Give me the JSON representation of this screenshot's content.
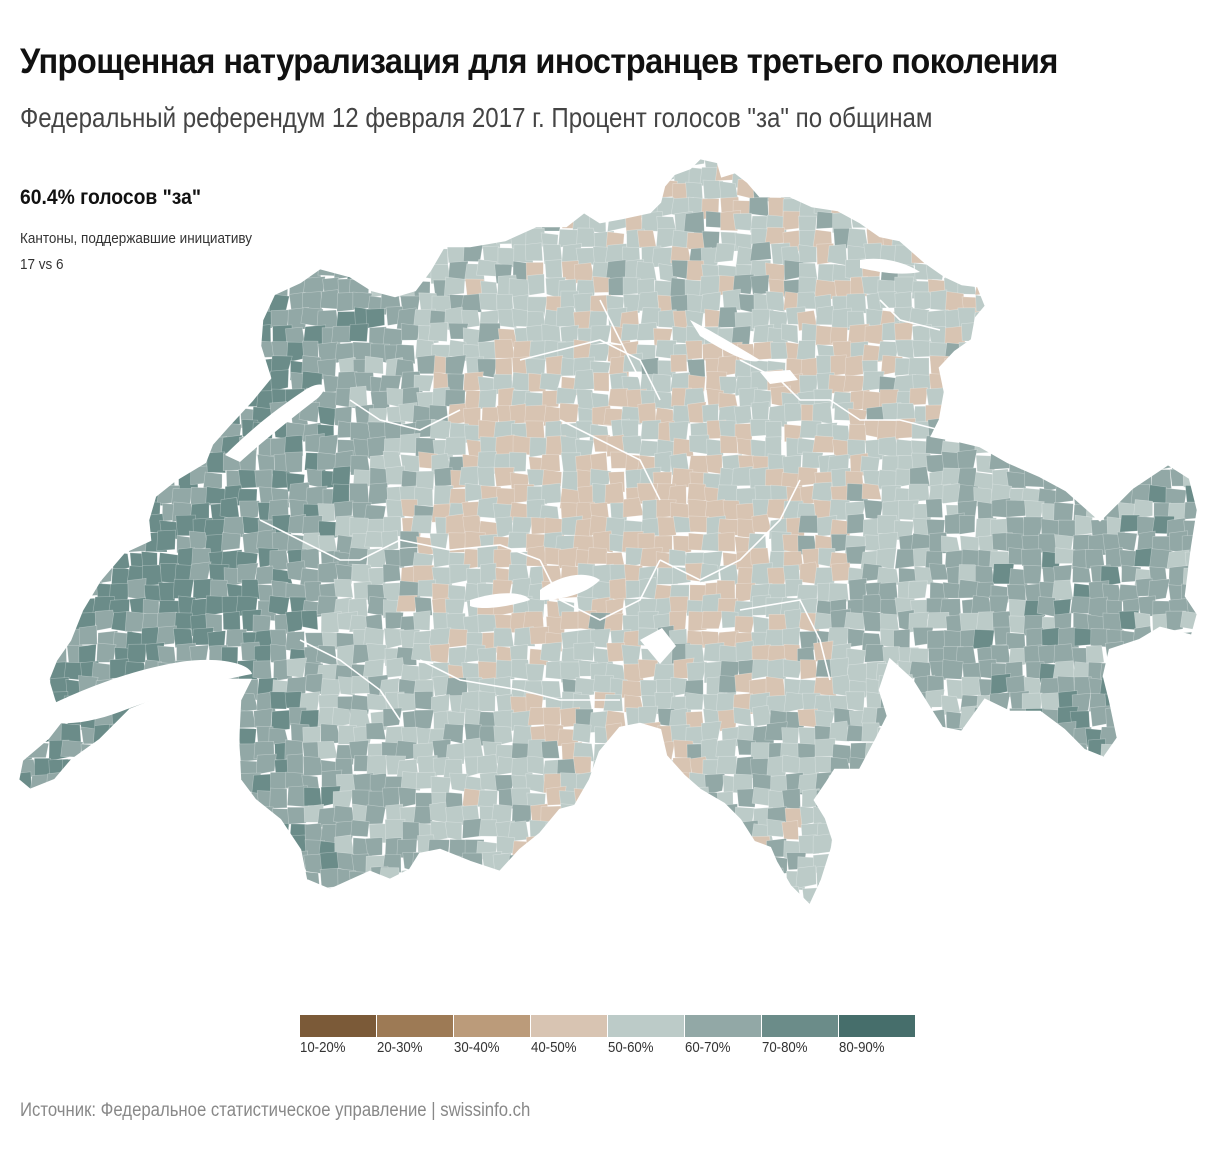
{
  "header": {
    "title": "Упрощенная натурализация для иностранцев третьего поколения",
    "subtitle": "Федеральный референдум 12 февраля 2017 г. Процент голосов \"за\" по общинам"
  },
  "summary": {
    "headline": "60.4% голосов \"за\"",
    "cantons_label": "Кантоны, поддержавшие инициативу",
    "cantons_count": "17 vs 6"
  },
  "legend": {
    "items": [
      {
        "label": "10-20%",
        "color": "#7b5a38"
      },
      {
        "label": "20-30%",
        "color": "#9d7a55"
      },
      {
        "label": "30-40%",
        "color": "#bb9b7a"
      },
      {
        "label": "40-50%",
        "color": "#d8c4b2"
      },
      {
        "label": "50-60%",
        "color": "#bccbc8"
      },
      {
        "label": "60-70%",
        "color": "#92a8a6"
      },
      {
        "label": "70-80%",
        "color": "#6b8c89"
      },
      {
        "label": "80-90%",
        "color": "#466e6b"
      }
    ]
  },
  "footer": {
    "source": "Источник: Федеральное статистическое управление | swissinfo.ch"
  }
}
